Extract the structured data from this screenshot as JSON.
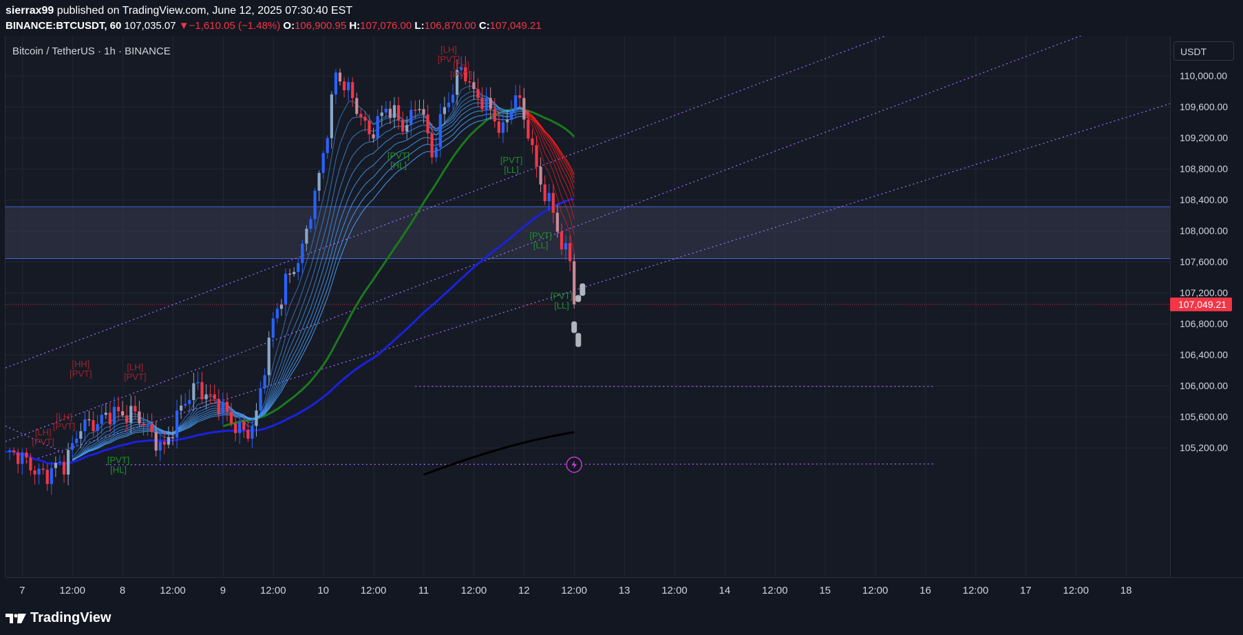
{
  "header": {
    "author": "sierrax99",
    "published_text": "published on TradingView.com, June 12, 2025 07:30:40 EST",
    "symbol": "BINANCE:BTCUSDT, 60",
    "last": "107,035.07",
    "change": "−1,610.05 (−1.48%)",
    "o_label": "O:",
    "o_val": "106,900.95",
    "h_label": "H:",
    "h_val": "107,076.00",
    "l_label": "L:",
    "l_val": "106,870.00",
    "c_label": "C:",
    "c_val": "107,049.21"
  },
  "legend": {
    "title": "Bitcoin / TetherUS · 1h · BINANCE"
  },
  "currency_button": "USDT",
  "footer": {
    "logo_text": "TradingView"
  },
  "colors": {
    "background": "#131722",
    "bull": "#2962ff",
    "bear": "#f23645",
    "ribbon_up": "#4aa3ff",
    "ribbon_down": "#ff1e1e",
    "ma_green": "#1b7a1b",
    "ma_blue": "#1a22e0",
    "channel": "#9c6bff",
    "zone": "#363a4f",
    "price_label": "#f23645"
  },
  "chart_data": {
    "type": "candlestick",
    "y_axis": {
      "ticks": [
        110000,
        109600,
        109200,
        108800,
        108400,
        108000,
        107600,
        107200,
        106800,
        106400,
        106000,
        105600,
        105200
      ],
      "tick_labels": [
        "110,000.00",
        "109,600.00",
        "109,200.00",
        "108,800.00",
        "108,400.00",
        "108,000.00",
        "107,600.00",
        "107,200.00",
        "106,800.00",
        "106,400.00",
        "106,000.00",
        "105,600.00",
        "105,200.00"
      ],
      "range": [
        104950,
        110850
      ]
    },
    "x_axis": {
      "tick_labels": [
        "7",
        "12:00",
        "8",
        "12:00",
        "9",
        "12:00",
        "10",
        "12:00",
        "11",
        "12:00",
        "12",
        "12:00",
        "13",
        "12:00",
        "14",
        "12:00",
        "15",
        "12:00",
        "16",
        "12:00",
        "17",
        "12:00",
        "18"
      ],
      "range": [
        "Jun 6 20:00",
        "Jun 18 16:00"
      ]
    },
    "current_price": 107049.21,
    "current_price_label": "107,049.21",
    "supply_zone": [
      107640,
      108310
    ],
    "pivot_labels": [
      {
        "text": "[LH]\n[PVT]",
        "kind": "bear",
        "at": "Jun 7 05:00",
        "price": 105360
      },
      {
        "text": "[LH]\n[PVT]",
        "kind": "bear",
        "at": "Jun 7 10:00",
        "price": 105560
      },
      {
        "text": "[HH]\n[PVT]",
        "kind": "bear",
        "at": "Jun 7 14:00",
        "price": 106240
      },
      {
        "text": "[LH]\n[PVT]",
        "kind": "bear",
        "at": "Jun 8 03:00",
        "price": 106200
      },
      {
        "text": "[PVT]\n[HL]",
        "kind": "bull",
        "at": "Jun 7 23:00",
        "price": 105000
      },
      {
        "text": "[PVT]\n[HL]",
        "kind": "bull",
        "at": "Jun 10 18:00",
        "price": 108930
      },
      {
        "text": "[HH]\n[PVT]",
        "kind": "bear",
        "at": "Jun 11 01:00",
        "price": 110920
      },
      {
        "text": "[LH]\n[PVT]",
        "kind": "bear",
        "at": "Jun 11 06:00",
        "price": 110300
      },
      {
        "text": "[LH]\n[PVT]",
        "kind": "bear",
        "at": "Jun 11 09:00",
        "price": 110100
      },
      {
        "text": "[PVT]\n[LL]",
        "kind": "bull",
        "at": "Jun 11 21:00",
        "price": 108870
      },
      {
        "text": "[PVT]\n[LL]",
        "kind": "bull",
        "at": "Jun 12 04:00",
        "price": 107900
      },
      {
        "text": "[PVT]\n[LL]",
        "kind": "bull",
        "at": "Jun 12 09:00",
        "price": 107120
      }
    ],
    "projection_bars": [
      {
        "at": "Jun 12 13:00",
        "open": 107080,
        "close": 107170
      },
      {
        "at": "Jun 12 14:00",
        "open": 107160,
        "close": 107320
      },
      {
        "at": "Jun 12 12:00",
        "open": 106830,
        "close": 106680
      },
      {
        "at": "Jun 12 13:00",
        "open": 106680,
        "close": 106500
      }
    ]
  }
}
